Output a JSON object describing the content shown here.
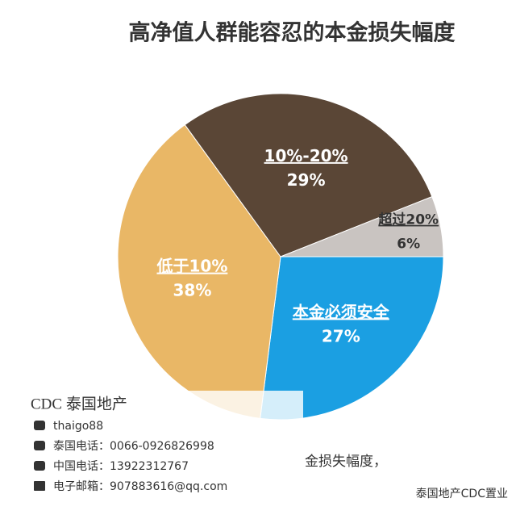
{
  "chart_data": {
    "type": "pie",
    "title": "高净值人群能容忍的本金损失幅度",
    "categories": [
      "本金必须安全",
      "低于10%",
      "10%-20%",
      "超过20%"
    ],
    "values": [
      27,
      38,
      29,
      6
    ],
    "value_labels": [
      "27%",
      "38%",
      "29%",
      "6%"
    ],
    "colors": [
      "#1b9fe2",
      "#e9b766",
      "#5a4636",
      "#c9c4c1"
    ]
  },
  "watermark_card": {
    "brand": "CDC 泰国地产",
    "wechat": "thaigo88",
    "thai_phone": "泰国电话：0066-0926826998",
    "china_phone": "中国电话：13922312767",
    "email": "电子邮箱：907883616@qq.com",
    "note": "金损失幅度，"
  },
  "watermark": "泰国地产CDC置业"
}
